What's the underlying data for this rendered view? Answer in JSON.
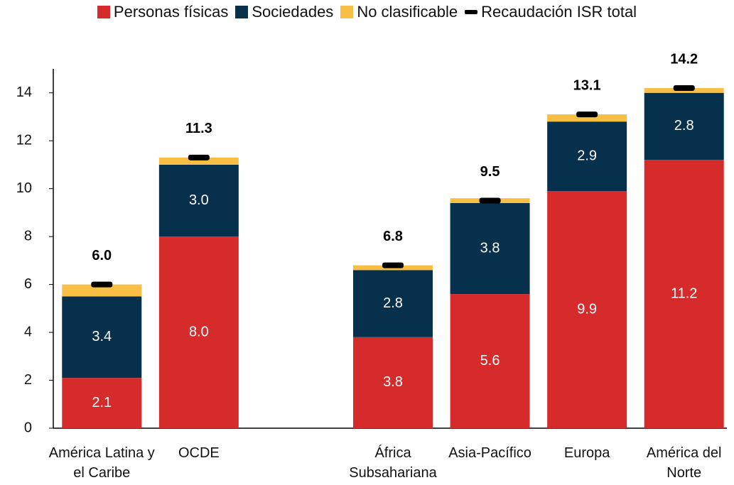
{
  "chart_data": {
    "type": "bar",
    "stacked": true,
    "categories": [
      "América Latina y el Caribe",
      "OCDE",
      null,
      "África Subsahariana",
      "Asia-Pacífico",
      "Europa",
      "América del Norte"
    ],
    "series": [
      {
        "name": "Personas físicas",
        "color": "#d62b2b",
        "values": [
          2.1,
          8.0,
          null,
          3.8,
          5.6,
          9.9,
          11.2
        ],
        "value_labels": [
          "2.1",
          "8.0",
          null,
          "3.8",
          "5.6",
          "9.9",
          "11.2"
        ]
      },
      {
        "name": "Sociedades",
        "color": "#06304b",
        "values": [
          3.4,
          3.0,
          null,
          2.8,
          3.8,
          2.9,
          2.8
        ],
        "value_labels": [
          "3.4",
          "3.0",
          null,
          "2.8",
          "3.8",
          "2.9",
          "2.8"
        ]
      },
      {
        "name": "No clasificable",
        "color": "#f7bf45",
        "values": [
          0.5,
          0.3,
          null,
          0.2,
          0.2,
          0.3,
          0.2
        ]
      },
      {
        "name": "Recaudación ISR total",
        "type": "marker",
        "color": "#000000",
        "values": [
          6.0,
          11.3,
          null,
          6.8,
          9.5,
          13.1,
          14.2
        ],
        "value_labels": [
          "6.0",
          "11.3",
          null,
          "6.8",
          "9.5",
          "13.1",
          "14.2"
        ]
      }
    ],
    "ylim": [
      0,
      15
    ],
    "yticks": [
      0,
      2,
      4,
      6,
      8,
      10,
      12,
      14
    ],
    "grid": false,
    "legend": "top"
  }
}
